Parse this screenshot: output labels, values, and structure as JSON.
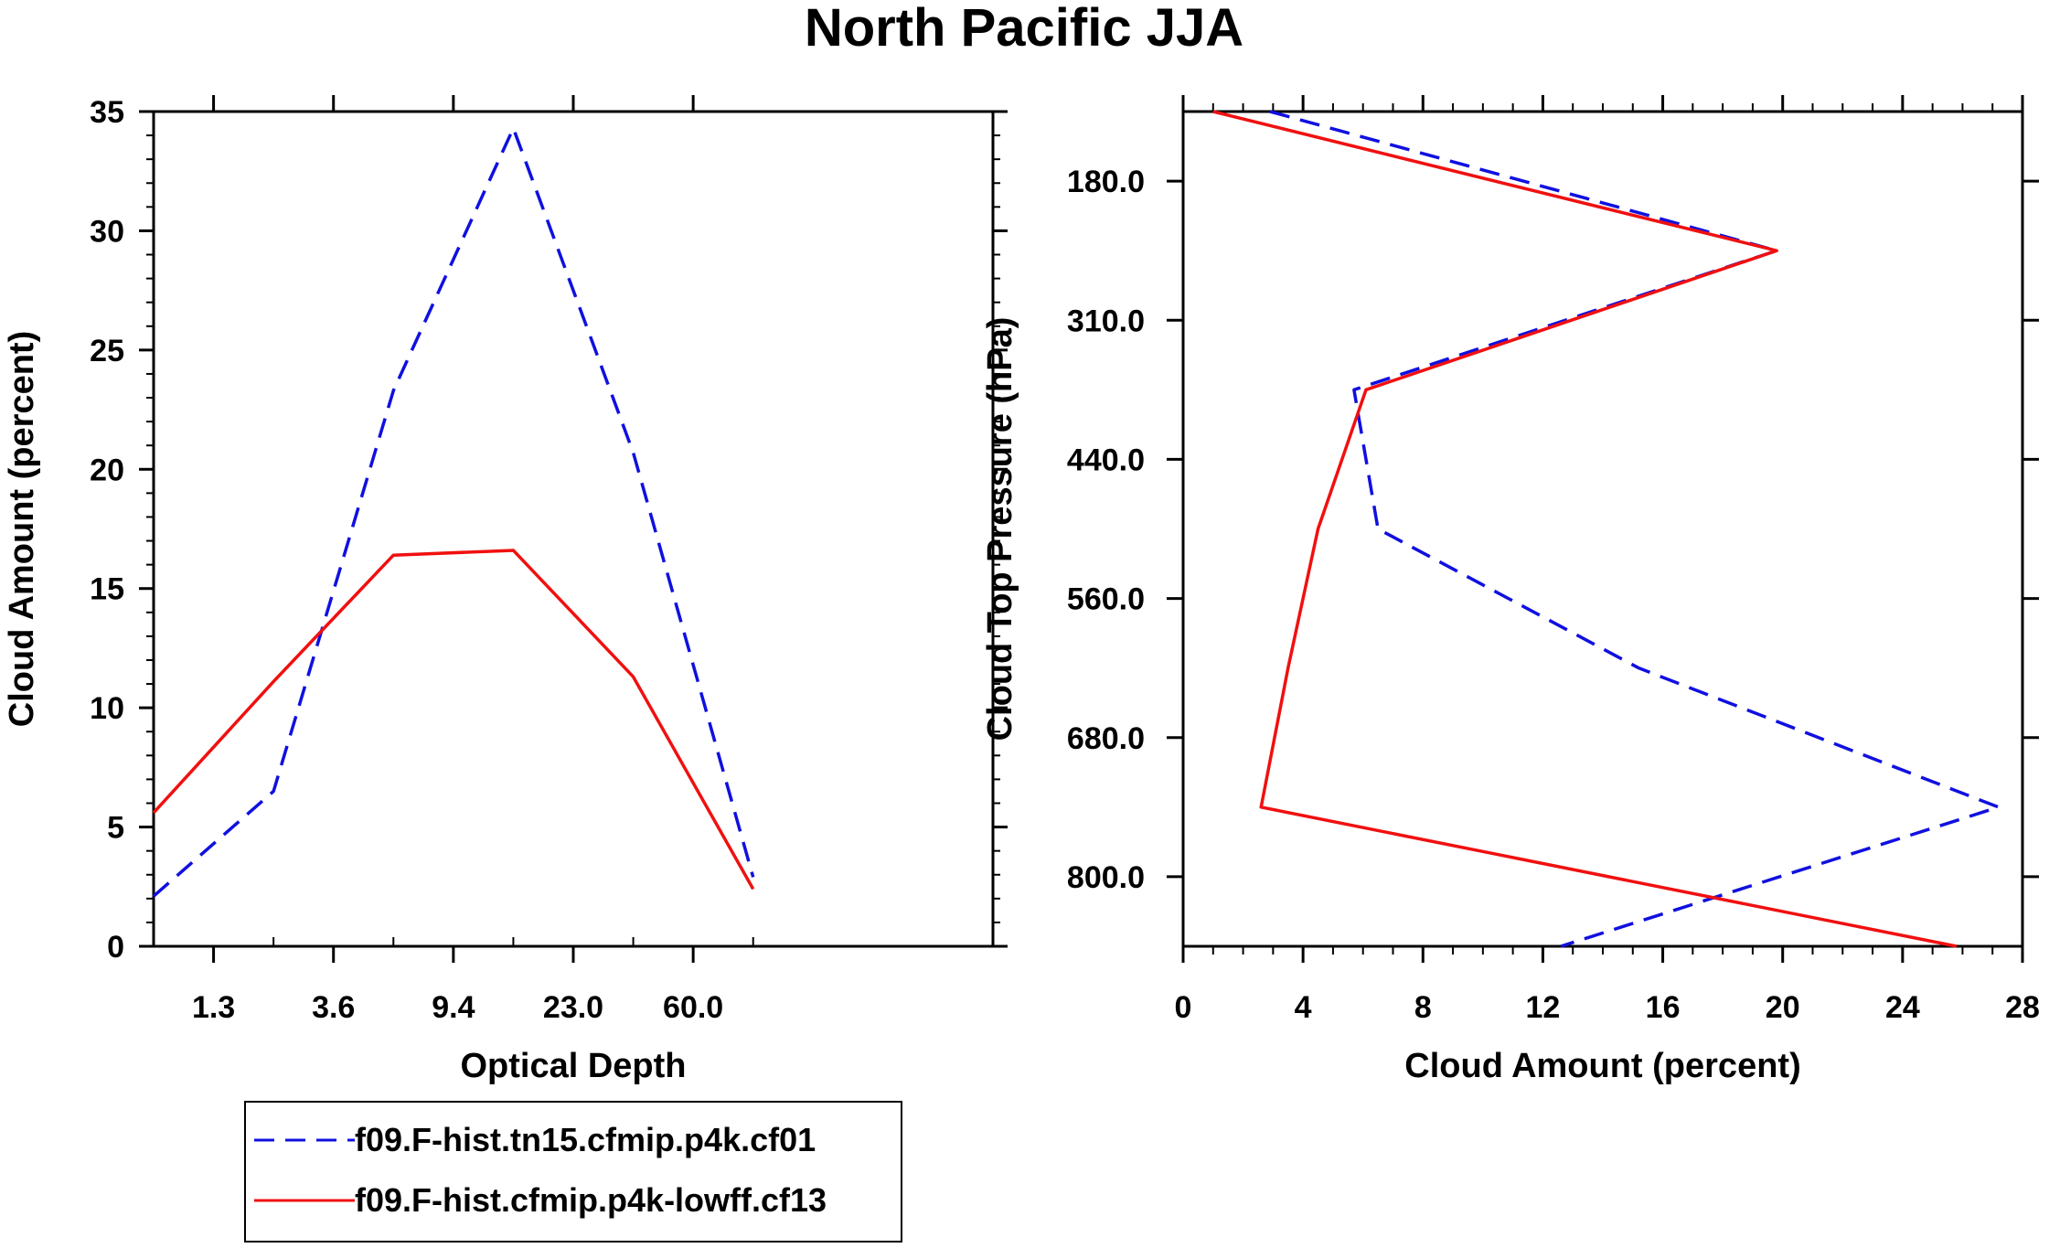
{
  "title": "North Pacific JJA",
  "colors": {
    "series_a": "#1010e0",
    "series_b": "#f01010",
    "axis": "#000000"
  },
  "legend": {
    "entries": [
      {
        "label": "f09.F-hist.tn15.cfmip.p4k.cf01",
        "style": "dashed",
        "color": "#1010e0"
      },
      {
        "label": "f09.F-hist.cfmip.p4k-lowff.cf13",
        "style": "solid",
        "color": "#f01010"
      }
    ]
  },
  "chart_data": [
    {
      "type": "line",
      "title": "",
      "xlabel": "Optical Depth",
      "ylabel": "Cloud Amount (percent)",
      "x_index_range": [
        0,
        7
      ],
      "x": [
        0,
        1,
        2,
        3,
        4,
        5,
        6,
        7
      ],
      "xticks": [
        {
          "pos": 0.5,
          "label": "1.3"
        },
        {
          "pos": 1.5,
          "label": "3.6"
        },
        {
          "pos": 2.5,
          "label": "9.4"
        },
        {
          "pos": 3.5,
          "label": "23.0"
        },
        {
          "pos": 4.5,
          "label": "60.0"
        }
      ],
      "x_minor": [
        1,
        2,
        3,
        4,
        5
      ],
      "ylim": [
        0,
        35
      ],
      "yticks": [
        0,
        5,
        10,
        15,
        20,
        25,
        30,
        35
      ],
      "y_minor_step": 1,
      "series": [
        {
          "name": "f09.F-hist.tn15.cfmip.p4k.cf01",
          "style": "dashed",
          "x": [
            0,
            1,
            2,
            3,
            4,
            5
          ],
          "values": [
            2.1,
            6.5,
            23.3,
            34.3,
            20.7,
            2.9
          ]
        },
        {
          "name": "f09.F-hist.cfmip.p4k-lowff.cf13",
          "style": "solid",
          "x": [
            0,
            1,
            2,
            3,
            4,
            5
          ],
          "values": [
            5.6,
            11.1,
            16.4,
            16.6,
            11.3,
            2.4
          ]
        }
      ]
    },
    {
      "type": "line",
      "title": "",
      "xlabel": "Cloud Amount (percent)",
      "ylabel": "Cloud Top Pressure (hPa)",
      "xlim": [
        0,
        28
      ],
      "xticks": [
        0,
        4,
        8,
        12,
        16,
        20,
        24,
        28
      ],
      "x_minor_step": 1,
      "y_index_range": [
        0,
        6
      ],
      "yticks": [
        {
          "pos": 0.5,
          "label": "180.0"
        },
        {
          "pos": 1.5,
          "label": "310.0"
        },
        {
          "pos": 2.5,
          "label": "440.0"
        },
        {
          "pos": 3.5,
          "label": "560.0"
        },
        {
          "pos": 4.5,
          "label": "680.0"
        },
        {
          "pos": 5.5,
          "label": "800.0"
        }
      ],
      "series": [
        {
          "name": "f09.F-hist.tn15.cfmip.p4k.cf01",
          "style": "dashed",
          "values": [
            2.9,
            19.8,
            5.7,
            6.5,
            15.2,
            27.2,
            12.6
          ],
          "y": [
            0,
            1,
            2,
            3,
            4,
            5,
            6
          ]
        },
        {
          "name": "f09.F-hist.cfmip.p4k-lowff.cf13",
          "style": "solid",
          "values": [
            1.0,
            19.8,
            6.1,
            4.5,
            3.5,
            2.6,
            25.8
          ],
          "y": [
            0,
            1,
            2,
            3,
            4,
            5,
            6
          ]
        }
      ]
    }
  ]
}
